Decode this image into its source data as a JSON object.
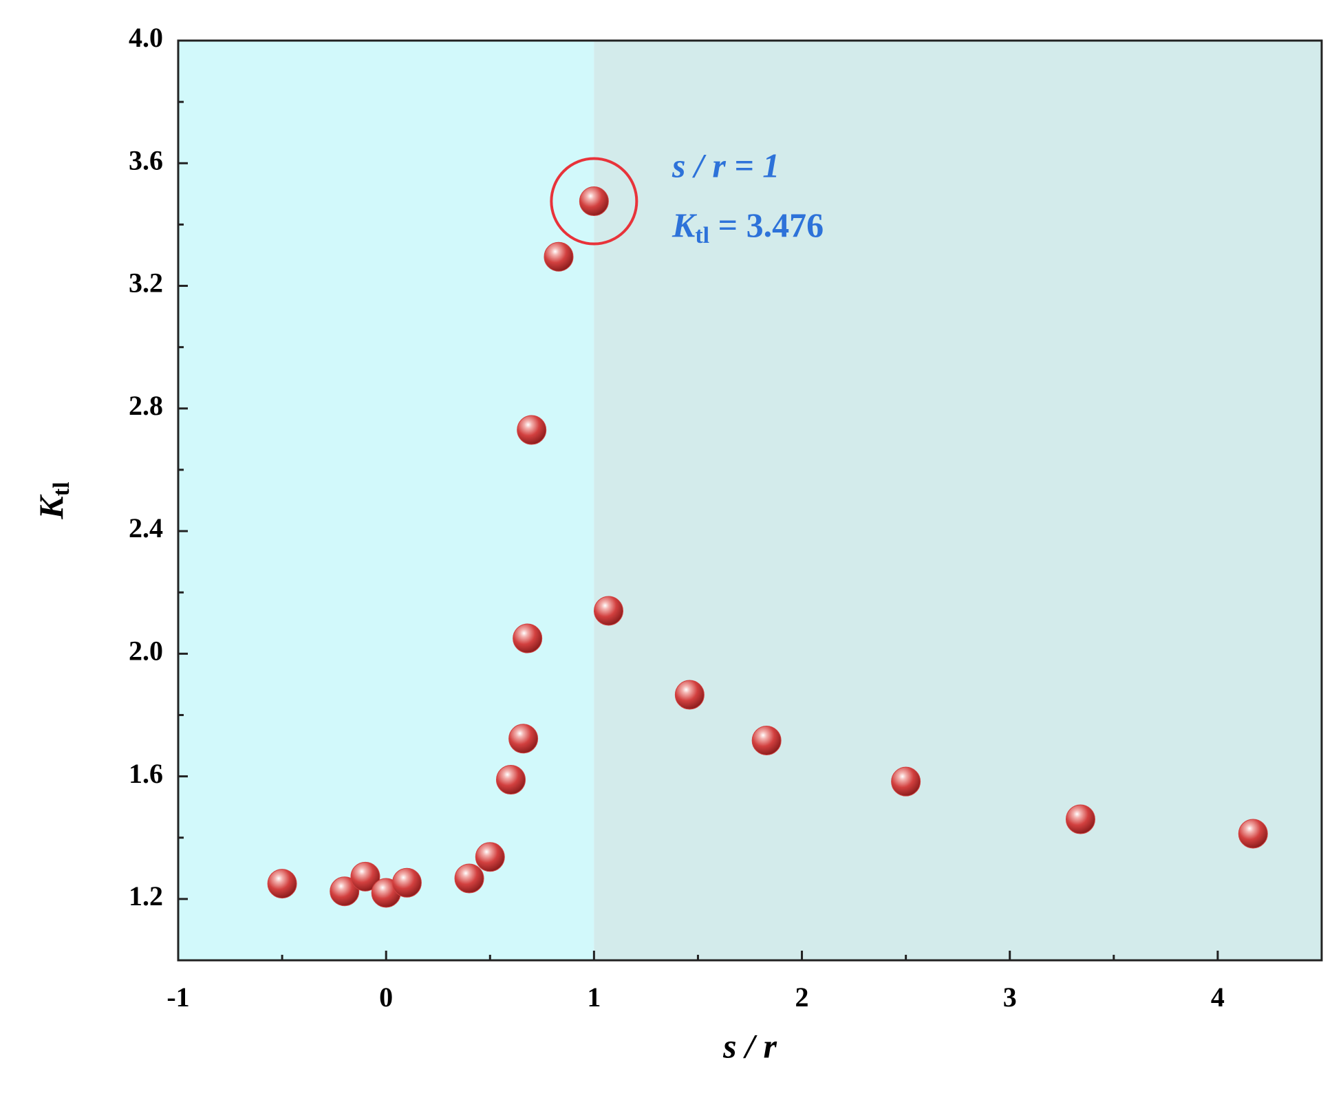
{
  "chart_data": {
    "type": "scatter",
    "xlabel": "s / r",
    "ylabel": {
      "main": "K",
      "sub": "tl"
    },
    "annotation": {
      "line1": "s / r = 1",
      "main": "K",
      "sub": "tl",
      "rest": " = 3.476"
    },
    "highlight_point": 12,
    "split_x": 1,
    "region_colors": [
      "#d2f9fb",
      "#d3ebeb"
    ],
    "color": "#d2403f",
    "highlight_color": "#e8333a",
    "annotation_color": "#2d72d9",
    "x": [
      -0.5,
      -0.2,
      -0.1,
      0,
      0.1,
      0.4,
      0.5,
      0.6,
      0.66,
      0.68,
      0.7,
      0.83,
      1,
      1.07,
      1.46,
      1.83,
      2.5,
      3.34,
      4.17
    ],
    "values": [
      1.25,
      1.225,
      1.273,
      1.22,
      1.253,
      1.267,
      1.337,
      1.589,
      1.723,
      2.05,
      2.73,
      3.295,
      3.476,
      2.14,
      1.866,
      1.717,
      1.583,
      1.46,
      1.413
    ],
    "xlim": [
      -1,
      4.5
    ],
    "xticks": [
      -1,
      0,
      1,
      2,
      3,
      4
    ],
    "ylim": [
      1.0,
      4.0
    ],
    "yticks": [
      1.2,
      1.6,
      {
        "value": 2,
        "label": "2.0"
      },
      2.4,
      2.8,
      3.2,
      3.6,
      {
        "value": 4,
        "label": "4.0"
      }
    ]
  }
}
